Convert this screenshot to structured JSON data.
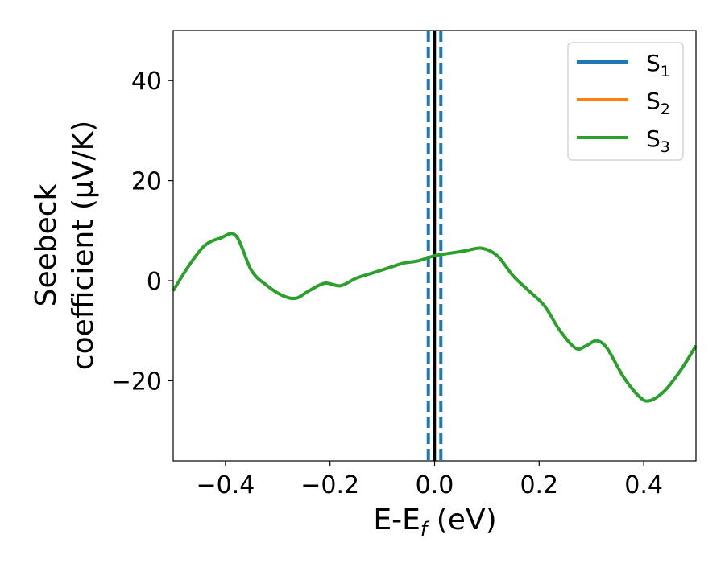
{
  "chart_data": {
    "type": "line",
    "xlabel": "E-E",
    "xlabel_sub": "f",
    "xlabel_unit": " (eV)",
    "ylabel_line1": "Seebeck",
    "ylabel_line2": "coefficient  (μV/K)",
    "xlim": [
      -0.5,
      0.5
    ],
    "ylim": [
      -36,
      50
    ],
    "xticks": [
      -0.4,
      -0.2,
      0.0,
      0.2,
      0.4
    ],
    "xtick_labels": [
      "−0.4",
      "−0.2",
      "0.0",
      "0.2",
      "0.4"
    ],
    "yticks": [
      -20,
      0,
      20,
      40
    ],
    "ytick_labels": [
      "−20",
      "0",
      "20",
      "40"
    ],
    "grid": false,
    "legend_position": "top-right",
    "series": [
      {
        "name": "S",
        "sub": "1",
        "color": "#1f77b4",
        "show_line": false,
        "x": [],
        "y": []
      },
      {
        "name": "S",
        "sub": "2",
        "color": "#ff7f0e",
        "show_line": false,
        "x": [],
        "y": []
      },
      {
        "name": "S",
        "sub": "3",
        "color": "#2ca02c",
        "show_line": true,
        "x": [
          -0.5,
          -0.47,
          -0.44,
          -0.41,
          -0.38,
          -0.35,
          -0.32,
          -0.29,
          -0.265,
          -0.24,
          -0.21,
          -0.18,
          -0.15,
          -0.12,
          -0.09,
          -0.06,
          -0.03,
          0.0,
          0.03,
          0.06,
          0.09,
          0.12,
          0.15,
          0.18,
          0.21,
          0.24,
          0.27,
          0.29,
          0.31,
          0.33,
          0.36,
          0.39,
          0.41,
          0.44,
          0.47,
          0.5
        ],
        "y": [
          -2,
          3,
          7,
          8.5,
          9,
          2,
          -1,
          -3,
          -3.5,
          -2,
          -0.5,
          -1,
          0.5,
          1.5,
          2.5,
          3.5,
          4,
          5,
          5.5,
          6,
          6.5,
          5,
          1,
          -2,
          -5,
          -10,
          -13.5,
          -13,
          -12,
          -13.5,
          -19,
          -23,
          -24,
          -22,
          -18,
          -13
        ]
      }
    ],
    "vlines": [
      {
        "x": 0.0,
        "color": "#000000",
        "style": "solid"
      },
      {
        "x": -0.012,
        "color": "#1f77b4",
        "style": "dashed"
      },
      {
        "x": 0.012,
        "color": "#1f77b4",
        "style": "dashed"
      }
    ]
  }
}
